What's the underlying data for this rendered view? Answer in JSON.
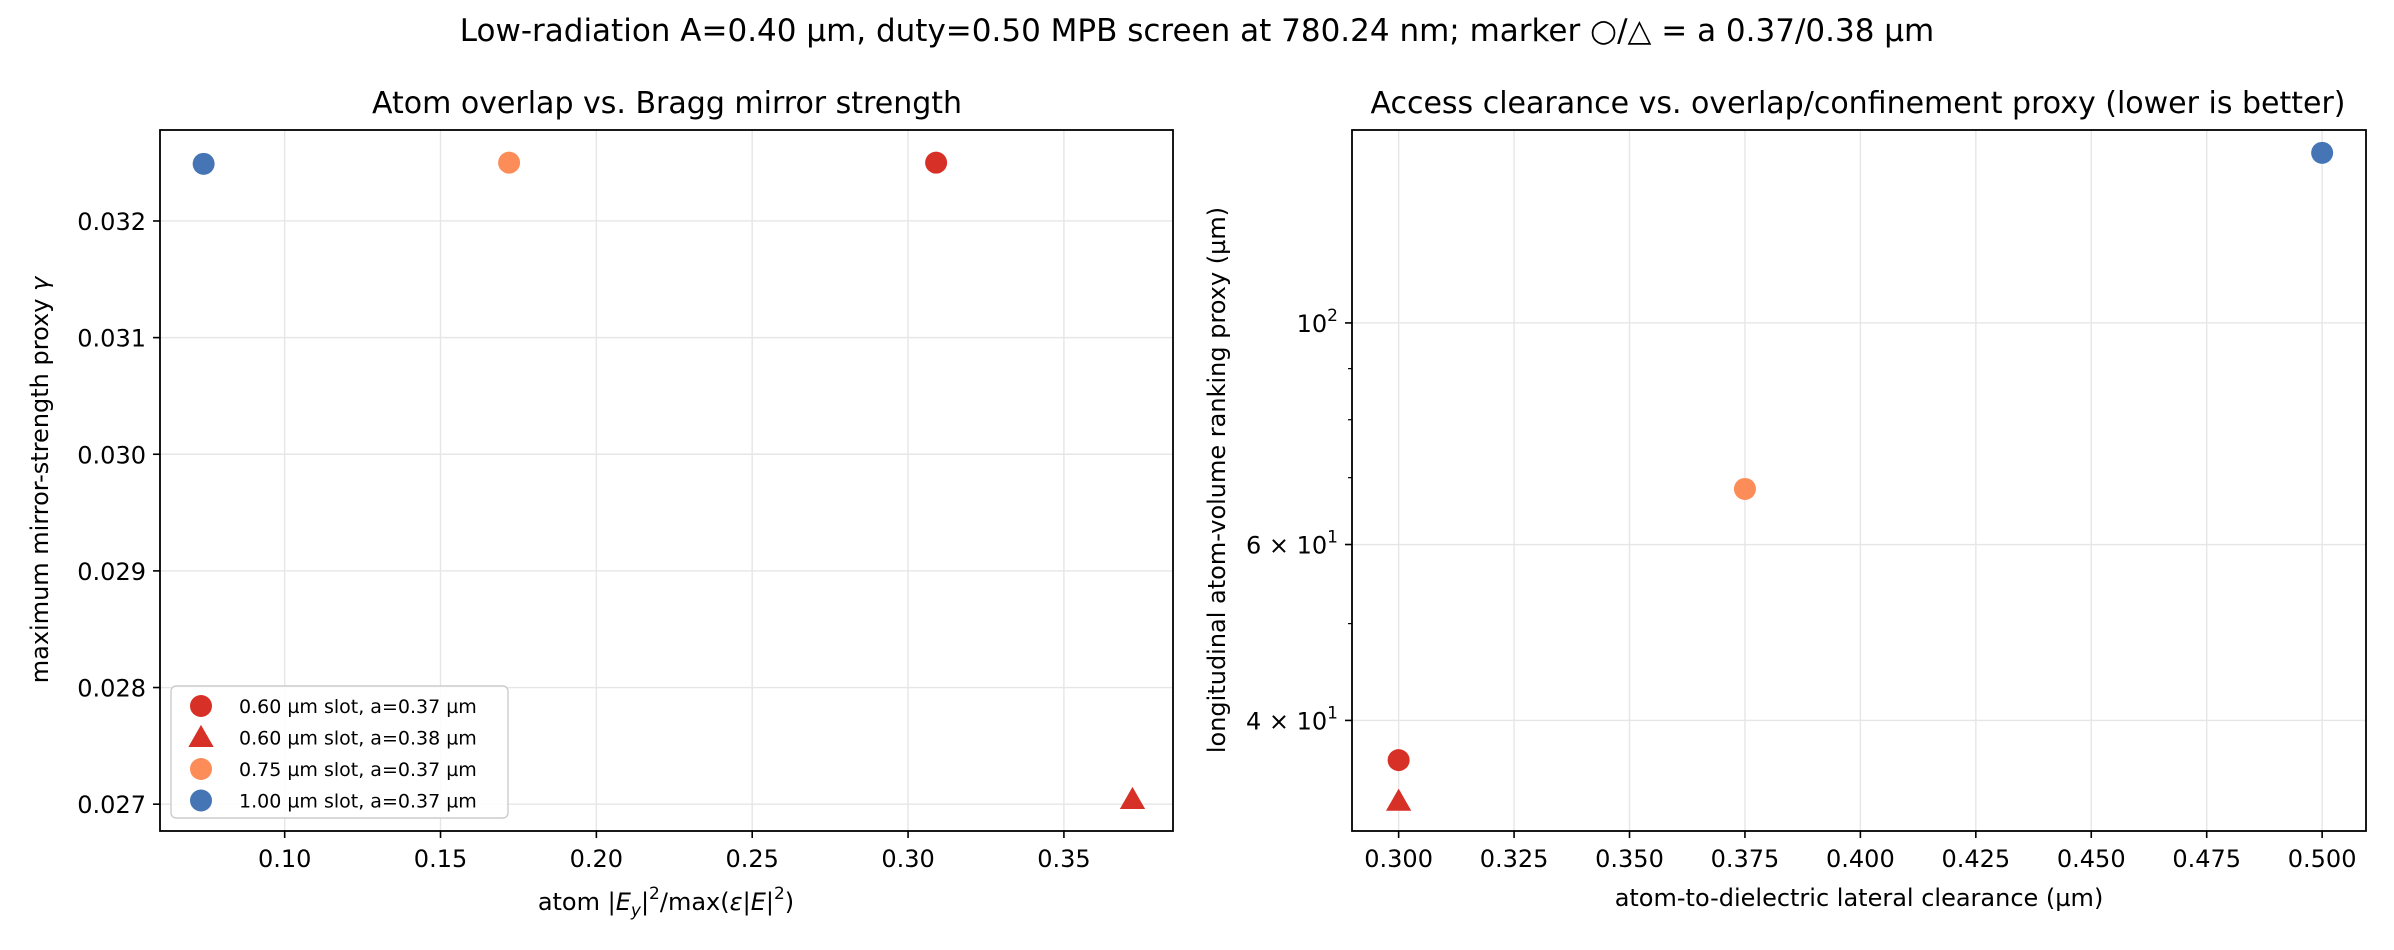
{
  "figure": {
    "suptitle": "Low-radiation A=0.40 µm, duty=0.50 MPB screen at 780.24 nm; marker ○/△ = a 0.37/0.38 µm"
  },
  "legend": {
    "entries": [
      {
        "label": "0.60 µm slot, a=0.37 µm",
        "color": "#d73027",
        "marker": "circle"
      },
      {
        "label": "0.60 µm slot, a=0.38 µm",
        "color": "#d73027",
        "marker": "triangle"
      },
      {
        "label": "0.75 µm slot, a=0.37 µm",
        "color": "#fc8d59",
        "marker": "circle"
      },
      {
        "label": "1.00 µm slot, a=0.37 µm",
        "color": "#4575b4",
        "marker": "circle"
      }
    ],
    "placement": "lower-left"
  },
  "chart_data": [
    {
      "type": "scatter",
      "title": "Atom overlap vs. Bragg mirror strength",
      "xlabel": "atom |E_y|²/max(ε|E|²)",
      "ylabel": "maximum mirror-strength proxy γ",
      "xscale": "linear",
      "yscale": "linear",
      "xlim": [
        0.06,
        0.385
      ],
      "ylim": [
        0.02677,
        0.03278
      ],
      "xticks": [
        0.1,
        0.15,
        0.2,
        0.25,
        0.3,
        0.35
      ],
      "xtick_labels": [
        "0.10",
        "0.15",
        "0.20",
        "0.25",
        "0.30",
        "0.35"
      ],
      "yticks": [
        0.027,
        0.028,
        0.029,
        0.03,
        0.031,
        0.032
      ],
      "ytick_labels": [
        "0.027",
        "0.028",
        "0.029",
        "0.030",
        "0.031",
        "0.032"
      ],
      "grid": true,
      "legend": "lower-left",
      "series": [
        {
          "name": "0.60 µm slot, a=0.37 µm",
          "color": "#d73027",
          "marker": "circle",
          "points": [
            {
              "x": 0.309,
              "y": 0.0325
            }
          ]
        },
        {
          "name": "0.60 µm slot, a=0.38 µm",
          "color": "#d73027",
          "marker": "triangle",
          "points": [
            {
              "x": 0.372,
              "y": 0.02704
            }
          ]
        },
        {
          "name": "0.75 µm slot, a=0.37 µm",
          "color": "#fc8d59",
          "marker": "circle",
          "points": [
            {
              "x": 0.172,
              "y": 0.0325
            }
          ]
        },
        {
          "name": "1.00 µm slot, a=0.37 µm",
          "color": "#4575b4",
          "marker": "circle",
          "points": [
            {
              "x": 0.074,
              "y": 0.03249
            }
          ]
        }
      ]
    },
    {
      "type": "scatter",
      "title": "Access clearance vs. overlap/confinement proxy (lower is better)",
      "xlabel": "atom-to-dielectric lateral clearance (µm)",
      "ylabel": "longitudinal atom-volume ranking proxy (µm)",
      "xscale": "linear",
      "yscale": "log",
      "xlim": [
        0.2899,
        0.5095
      ],
      "ylim": [
        31.0,
        156.0
      ],
      "xticks": [
        0.3,
        0.325,
        0.35,
        0.375,
        0.4,
        0.425,
        0.45,
        0.475,
        0.5
      ],
      "xtick_labels": [
        "0.300",
        "0.325",
        "0.350",
        "0.375",
        "0.400",
        "0.425",
        "0.450",
        "0.475",
        "0.500"
      ],
      "yticks": [
        40,
        60,
        100
      ],
      "ytick_labels": [
        {
          "base": "4 × 10",
          "exp": "1"
        },
        {
          "base": "6 × 10",
          "exp": "1"
        },
        {
          "base": "10",
          "exp": "2"
        }
      ],
      "yminor": [
        50,
        70,
        80,
        90
      ],
      "grid": true,
      "series": [
        {
          "name": "0.60 µm slot, a=0.37 µm",
          "color": "#d73027",
          "marker": "circle",
          "points": [
            {
              "x": 0.3,
              "y": 36.5
            }
          ]
        },
        {
          "name": "0.60 µm slot, a=0.38 µm",
          "color": "#d73027",
          "marker": "triangle",
          "points": [
            {
              "x": 0.3,
              "y": 33.2
            }
          ]
        },
        {
          "name": "0.75 µm slot, a=0.37 µm",
          "color": "#fc8d59",
          "marker": "circle",
          "points": [
            {
              "x": 0.375,
              "y": 68.2
            }
          ]
        },
        {
          "name": "1.00 µm slot, a=0.37 µm",
          "color": "#4575b4",
          "marker": "circle",
          "points": [
            {
              "x": 0.5,
              "y": 148.0
            }
          ]
        }
      ]
    }
  ]
}
